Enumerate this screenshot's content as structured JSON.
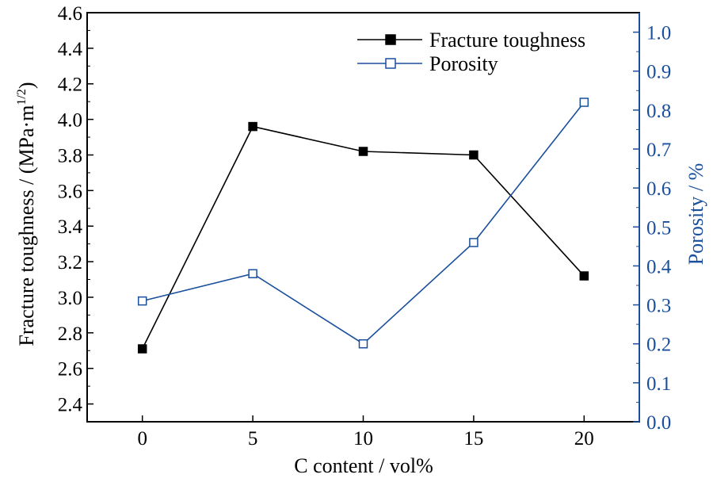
{
  "chart_data": {
    "type": "line",
    "x": [
      0,
      5,
      10,
      15,
      20
    ],
    "xlabel": "C content / vol%",
    "xlim": [
      -2.5,
      22.5
    ],
    "xticks": [
      0,
      5,
      10,
      15,
      20
    ],
    "y_left": {
      "label_prefix": "Fracture toughness / (MPa·m",
      "label_sup": "1/2",
      "label_suffix": ")",
      "lim": [
        2.3,
        4.6
      ],
      "ticks": [
        "2.4",
        "2.6",
        "2.8",
        "3.0",
        "3.2",
        "3.4",
        "3.6",
        "3.8",
        "4.0",
        "4.2",
        "4.4",
        "4.6"
      ],
      "color": "#000000"
    },
    "y_right": {
      "label": "Porosity / %",
      "lim": [
        0.0,
        1.05
      ],
      "ticks": [
        "0.0",
        "0.1",
        "0.2",
        "0.3",
        "0.4",
        "0.5",
        "0.6",
        "0.7",
        "0.8",
        "0.9",
        "1.0"
      ],
      "color": "#1a4f9c"
    },
    "series": [
      {
        "name": "Fracture toughness",
        "axis": "left",
        "values": [
          2.71,
          3.96,
          3.82,
          3.8,
          3.12
        ],
        "color": "#000000",
        "marker": "filled-square"
      },
      {
        "name": "Porosity",
        "axis": "right",
        "values": [
          0.31,
          0.38,
          0.2,
          0.46,
          0.82
        ],
        "color": "#1a4f9c",
        "marker": "open-square"
      }
    ],
    "legend_position": "top-right",
    "grid": false
  }
}
